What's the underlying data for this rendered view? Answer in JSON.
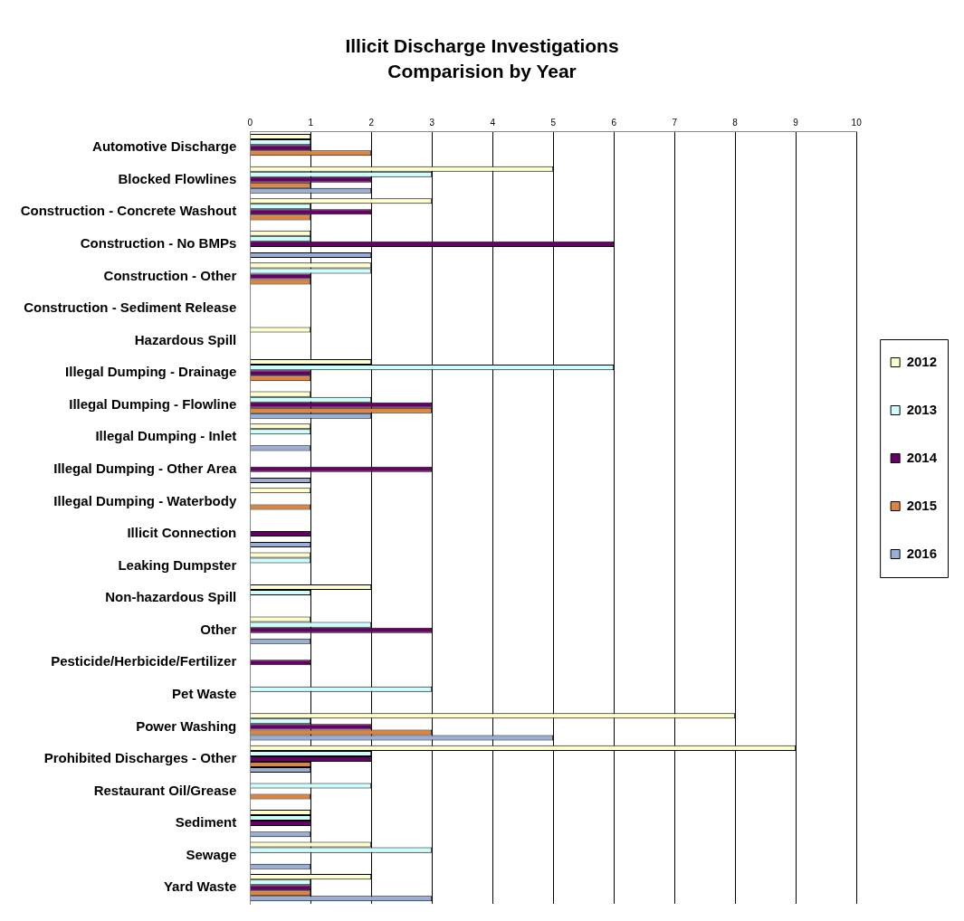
{
  "chart_data": {
    "type": "bar",
    "orientation": "horizontal",
    "title": "Illicit Discharge Investigations",
    "subtitle": "Comparision by Year",
    "categories": [
      "Automotive Discharge",
      "Blocked Flowlines",
      "Construction - Concrete Washout",
      "Construction - No BMPs",
      "Construction - Other",
      "Construction - Sediment Release",
      "Hazardous Spill",
      "Illegal Dumping - Drainage",
      "Illegal Dumping - Flowline",
      "Illegal Dumping - Inlet",
      "Illegal Dumping - Other Area",
      "Illegal Dumping - Waterbody",
      "Illicit Connection",
      "Leaking Dumpster",
      "Non-hazardous Spill",
      "Other",
      "Pesticide/Herbicide/Fertilizer",
      "Pet Waste",
      "Power Washing",
      "Prohibited Discharges - Other",
      "Restaurant Oil/Grease",
      "Sediment",
      "Sewage",
      "Yard Waste"
    ],
    "series": [
      {
        "name": "2012",
        "color": "#ffffcc",
        "values": [
          1,
          5,
          3,
          1,
          2,
          0,
          1,
          2,
          1,
          1,
          0,
          1,
          0,
          1,
          2,
          1,
          0,
          0,
          8,
          9,
          0,
          1,
          2,
          2
        ]
      },
      {
        "name": "2013",
        "color": "#ccffff",
        "values": [
          1,
          3,
          1,
          1,
          2,
          0,
          0,
          6,
          2,
          1,
          0,
          0,
          0,
          1,
          1,
          2,
          0,
          3,
          1,
          2,
          2,
          1,
          3,
          1
        ]
      },
      {
        "name": "2014",
        "color": "#660066",
        "values": [
          1,
          2,
          2,
          6,
          1,
          0,
          0,
          1,
          3,
          0,
          3,
          0,
          1,
          0,
          0,
          3,
          1,
          0,
          2,
          2,
          0,
          1,
          0,
          1
        ]
      },
      {
        "name": "2015",
        "color": "#e0843c",
        "values": [
          2,
          1,
          1,
          0,
          1,
          0,
          0,
          1,
          3,
          0,
          0,
          1,
          0,
          0,
          0,
          0,
          0,
          0,
          3,
          1,
          1,
          0,
          0,
          1
        ]
      },
      {
        "name": "2016",
        "color": "#99aed6",
        "values": [
          0,
          2,
          0,
          2,
          0,
          0,
          0,
          0,
          2,
          1,
          1,
          0,
          1,
          0,
          0,
          1,
          0,
          0,
          5,
          1,
          0,
          1,
          1,
          3
        ]
      }
    ],
    "xlim": [
      0,
      10
    ],
    "xticks": [
      0,
      1,
      2,
      3,
      4,
      5,
      6,
      7,
      8,
      9,
      10
    ],
    "grid": "x",
    "legend": "right"
  }
}
